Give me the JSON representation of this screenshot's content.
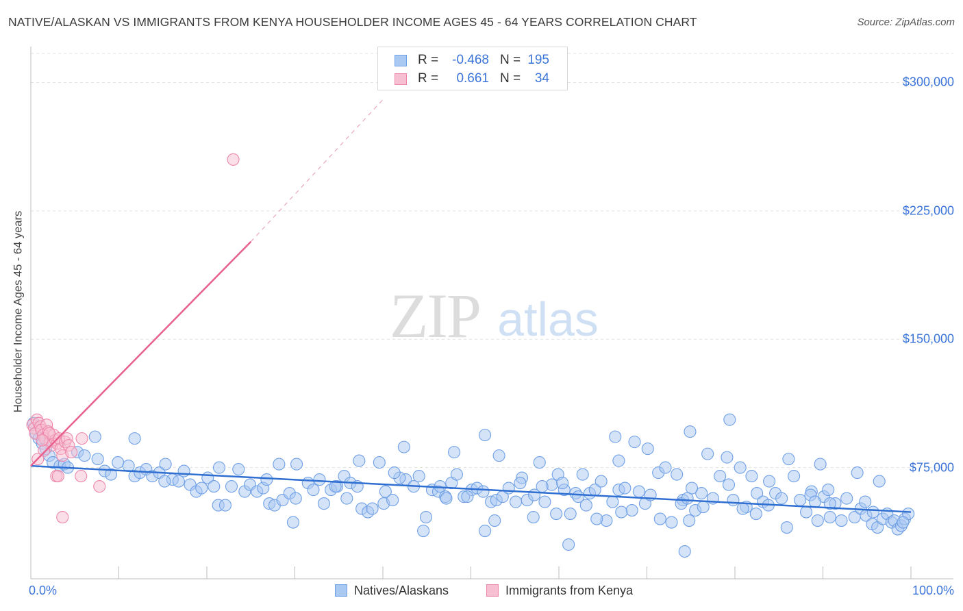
{
  "header": {
    "title": "NATIVE/ALASKAN VS IMMIGRANTS FROM KENYA HOUSEHOLDER INCOME AGES 45 - 64 YEARS CORRELATION CHART",
    "source": "Source: ZipAtlas.com"
  },
  "watermark": {
    "zip": "ZIP",
    "atlas": "atlas"
  },
  "legend": {
    "rows": [
      {
        "r_label": "R =",
        "r_value": "-0.468",
        "n_label": "N =",
        "n_value": "195"
      },
      {
        "r_label": "R =",
        "r_value": "0.661",
        "n_label": "N =",
        "n_value": "34"
      }
    ]
  },
  "bottom_legend": {
    "items": [
      "Natives/Alaskans",
      "Immigrants from Kenya"
    ]
  },
  "colors": {
    "blue_fill": "#a9c8f2",
    "blue_stroke": "#6fa0e6",
    "blue_line": "#2f6fd1",
    "pink_fill": "#f7bfd2",
    "pink_stroke": "#ec86aa",
    "pink_line": "#e8608f",
    "tick_text": "#3b74d8",
    "grid": "#e1e1e1"
  },
  "chart_data": {
    "type": "scatter",
    "title": "NATIVE/ALASKAN VS IMMIGRANTS FROM KENYA HOUSEHOLDER INCOME AGES 45 - 64 YEARS CORRELATION CHART",
    "xlabel": "",
    "ylabel": "Householder Income Ages 45 - 64 years",
    "x_unit": "percent",
    "xlim": [
      0,
      100
    ],
    "ylim": [
      10000,
      317000
    ],
    "x_tick_labels": [
      "0.0%",
      "100.0%"
    ],
    "y_ticks": [
      75000,
      150000,
      225000,
      300000
    ],
    "y_tick_labels": [
      "$75,000",
      "$150,000",
      "$225,000",
      "$300,000"
    ],
    "grid": true,
    "legend_position": "top-center",
    "series": [
      {
        "name": "Natives/Alaskans",
        "r": -0.468,
        "n": 195,
        "trend": {
          "x": [
            0,
            100
          ],
          "y": [
            76000,
            49000
          ]
        },
        "points": [
          [
            0.3,
            101000
          ],
          [
            0.6,
            95000
          ],
          [
            0.9,
            92000
          ],
          [
            1.3,
            89000
          ],
          [
            1.7,
            86000
          ],
          [
            2.1,
            82000
          ],
          [
            2.5,
            78000
          ],
          [
            3.3,
            76000
          ],
          [
            3.8,
            77000
          ],
          [
            4.2,
            75000
          ],
          [
            5.3,
            84000
          ],
          [
            6.1,
            82000
          ],
          [
            7.3,
            93000
          ],
          [
            7.6,
            80000
          ],
          [
            8.4,
            73000
          ],
          [
            9.1,
            71000
          ],
          [
            9.9,
            78000
          ],
          [
            11.1,
            76000
          ],
          [
            11.8,
            70000
          ],
          [
            12.4,
            72000
          ],
          [
            13.1,
            74000
          ],
          [
            13.8,
            70000
          ],
          [
            14.6,
            72000
          ],
          [
            15.3,
            77000
          ],
          [
            16.1,
            68000
          ],
          [
            16.8,
            67000
          ],
          [
            17.4,
            73000
          ],
          [
            18.1,
            65000
          ],
          [
            18.8,
            61000
          ],
          [
            19.4,
            63000
          ],
          [
            20.1,
            69000
          ],
          [
            20.8,
            64000
          ],
          [
            21.3,
            53000
          ],
          [
            22.1,
            53000
          ],
          [
            22.8,
            64000
          ],
          [
            23.6,
            74000
          ],
          [
            24.3,
            61000
          ],
          [
            24.9,
            65000
          ],
          [
            25.7,
            61000
          ],
          [
            26.4,
            63000
          ],
          [
            27.1,
            54000
          ],
          [
            27.7,
            53000
          ],
          [
            28.6,
            56000
          ],
          [
            29.4,
            60000
          ],
          [
            30.1,
            57000
          ],
          [
            31.5,
            66000
          ],
          [
            32.1,
            62000
          ],
          [
            32.8,
            68000
          ],
          [
            33.3,
            54000
          ],
          [
            34.1,
            62000
          ],
          [
            34.8,
            64000
          ],
          [
            35.6,
            70000
          ],
          [
            36.3,
            66000
          ],
          [
            37.1,
            64000
          ],
          [
            37.6,
            51000
          ],
          [
            38.3,
            49000
          ],
          [
            38.8,
            51000
          ],
          [
            40.1,
            54000
          ],
          [
            40.3,
            61000
          ],
          [
            41.1,
            56000
          ],
          [
            42.6,
            68000
          ],
          [
            43.5,
            64000
          ],
          [
            44.1,
            70000
          ],
          [
            44.9,
            46000
          ],
          [
            45.6,
            62000
          ],
          [
            46.3,
            61000
          ],
          [
            47.1,
            58000
          ],
          [
            47.8,
            66000
          ],
          [
            48.4,
            71000
          ],
          [
            49.2,
            58000
          ],
          [
            50.1,
            62000
          ],
          [
            50.7,
            63000
          ],
          [
            51.4,
            61000
          ],
          [
            52.3,
            55000
          ],
          [
            52.9,
            56000
          ],
          [
            53.6,
            58000
          ],
          [
            54.3,
            63000
          ],
          [
            55.1,
            55000
          ],
          [
            55.8,
            69000
          ],
          [
            56.4,
            56000
          ],
          [
            57.1,
            46000
          ],
          [
            57.8,
            78000
          ],
          [
            58.4,
            55000
          ],
          [
            59.2,
            65000
          ],
          [
            59.9,
            71000
          ],
          [
            60.6,
            62000
          ],
          [
            61.3,
            48000
          ],
          [
            61.9,
            60000
          ],
          [
            62.7,
            71000
          ],
          [
            63.5,
            60000
          ],
          [
            64.1,
            62000
          ],
          [
            64.8,
            67000
          ],
          [
            65.4,
            44000
          ],
          [
            66.1,
            55000
          ],
          [
            66.8,
            62000
          ],
          [
            67.5,
            63000
          ],
          [
            68.3,
            50000
          ],
          [
            69.1,
            61000
          ],
          [
            69.8,
            54000
          ],
          [
            70.4,
            59000
          ],
          [
            71.3,
            72000
          ],
          [
            72.1,
            75000
          ],
          [
            72.8,
            43000
          ],
          [
            73.4,
            71000
          ],
          [
            74.1,
            56000
          ],
          [
            74.8,
            44000
          ],
          [
            75.5,
            50000
          ],
          [
            76.2,
            60000
          ],
          [
            76.9,
            83000
          ],
          [
            77.5,
            57000
          ],
          [
            78.3,
            70000
          ],
          [
            79.1,
            81000
          ],
          [
            79.8,
            56000
          ],
          [
            80.6,
            75000
          ],
          [
            81.3,
            52000
          ],
          [
            81.9,
            70000
          ],
          [
            82.5,
            60000
          ],
          [
            83.2,
            55000
          ],
          [
            83.9,
            67000
          ],
          [
            84.6,
            60000
          ],
          [
            85.3,
            57000
          ],
          [
            85.9,
            40000
          ],
          [
            86.7,
            70000
          ],
          [
            87.4,
            56000
          ],
          [
            88.1,
            49000
          ],
          [
            88.7,
            61000
          ],
          [
            89.4,
            44000
          ],
          [
            90.1,
            58000
          ],
          [
            90.8,
            46000
          ],
          [
            91.4,
            54000
          ],
          [
            92.1,
            44000
          ],
          [
            92.7,
            57000
          ],
          [
            93.6,
            46000
          ],
          [
            94.3,
            51000
          ],
          [
            94.9,
            47000
          ],
          [
            95.6,
            42000
          ],
          [
            96.2,
            40000
          ],
          [
            96.8,
            45000
          ],
          [
            97.3,
            48000
          ],
          [
            97.8,
            43000
          ],
          [
            98.1,
            44000
          ],
          [
            98.5,
            39000
          ],
          [
            98.9,
            41000
          ],
          [
            99.3,
            45000
          ],
          [
            99.7,
            48000
          ],
          [
            15.2,
            67000
          ],
          [
            29.8,
            43000
          ],
          [
            44.6,
            38000
          ],
          [
            62.2,
            58000
          ],
          [
            71.5,
            45000
          ],
          [
            52.7,
            44000
          ],
          [
            68.6,
            90000
          ],
          [
            73.9,
            54000
          ],
          [
            58.1,
            64000
          ],
          [
            82.4,
            48000
          ],
          [
            26.8,
            68000
          ],
          [
            35.9,
            57000
          ],
          [
            47.2,
            57000
          ],
          [
            76.4,
            52000
          ],
          [
            90.6,
            62000
          ],
          [
            11.8,
            92000
          ],
          [
            21.4,
            75000
          ],
          [
            28.2,
            77000
          ],
          [
            37.3,
            79000
          ],
          [
            42.4,
            87000
          ],
          [
            48.1,
            84000
          ],
          [
            53.2,
            82000
          ],
          [
            60.4,
            66000
          ],
          [
            64.3,
            45000
          ],
          [
            66.8,
            79000
          ],
          [
            70.1,
            86000
          ],
          [
            75.1,
            63000
          ],
          [
            83.8,
            53000
          ],
          [
            88.6,
            59000
          ],
          [
            93.9,
            72000
          ],
          [
            96.4,
            67000
          ],
          [
            41.9,
            69000
          ],
          [
            55.6,
            66000
          ],
          [
            79.3,
            65000
          ],
          [
            86.1,
            80000
          ],
          [
            39.6,
            78000
          ],
          [
            46.5,
            64000
          ],
          [
            59.7,
            48000
          ],
          [
            67.1,
            49000
          ],
          [
            74.6,
            57000
          ],
          [
            80.9,
            51000
          ],
          [
            89.7,
            77000
          ],
          [
            94.8,
            55000
          ],
          [
            99.1,
            43000
          ],
          [
            34.6,
            64000
          ],
          [
            30.2,
            77000
          ],
          [
            41.3,
            72000
          ],
          [
            49.6,
            58000
          ],
          [
            57.2,
            59000
          ],
          [
            63.1,
            53000
          ],
          [
            51.6,
            94000
          ],
          [
            66.4,
            93000
          ],
          [
            74.9,
            96000
          ],
          [
            79.4,
            103000
          ],
          [
            89.1,
            55000
          ],
          [
            51.6,
            38000
          ],
          [
            61.1,
            30000
          ],
          [
            74.3,
            26000
          ],
          [
            90.8,
            54000
          ],
          [
            95.7,
            49000
          ]
        ]
      },
      {
        "name": "Immigrants from Kenya",
        "r": 0.661,
        "n": 34,
        "trend": {
          "x": [
            0,
            25
          ],
          "y": [
            76000,
            207000
          ],
          "dashed_to": {
            "x": 40,
            "y": 290000
          }
        },
        "points": [
          [
            0.2,
            100000
          ],
          [
            0.4,
            98000
          ],
          [
            0.5,
            95000
          ],
          [
            0.7,
            103000
          ],
          [
            0.9,
            101000
          ],
          [
            1.1,
            99000
          ],
          [
            1.2,
            97000
          ],
          [
            1.4,
            94000
          ],
          [
            1.6,
            92000
          ],
          [
            1.8,
            100000
          ],
          [
            2.0,
            96000
          ],
          [
            2.2,
            90000
          ],
          [
            2.4,
            88000
          ],
          [
            2.6,
            94000
          ],
          [
            2.8,
            91000
          ],
          [
            3.0,
            89000
          ],
          [
            3.2,
            92000
          ],
          [
            3.4,
            86000
          ],
          [
            3.6,
            82000
          ],
          [
            3.9,
            90000
          ],
          [
            4.1,
            92000
          ],
          [
            4.3,
            88000
          ],
          [
            4.6,
            84000
          ],
          [
            1.5,
            85000
          ],
          [
            2.1,
            95000
          ],
          [
            5.8,
            92000
          ],
          [
            0.8,
            80000
          ],
          [
            1.3,
            91000
          ],
          [
            2.9,
            70000
          ],
          [
            3.1,
            70000
          ],
          [
            5.7,
            70000
          ],
          [
            7.8,
            64000
          ],
          [
            3.6,
            46000
          ],
          [
            23.0,
            255000
          ]
        ]
      }
    ]
  }
}
